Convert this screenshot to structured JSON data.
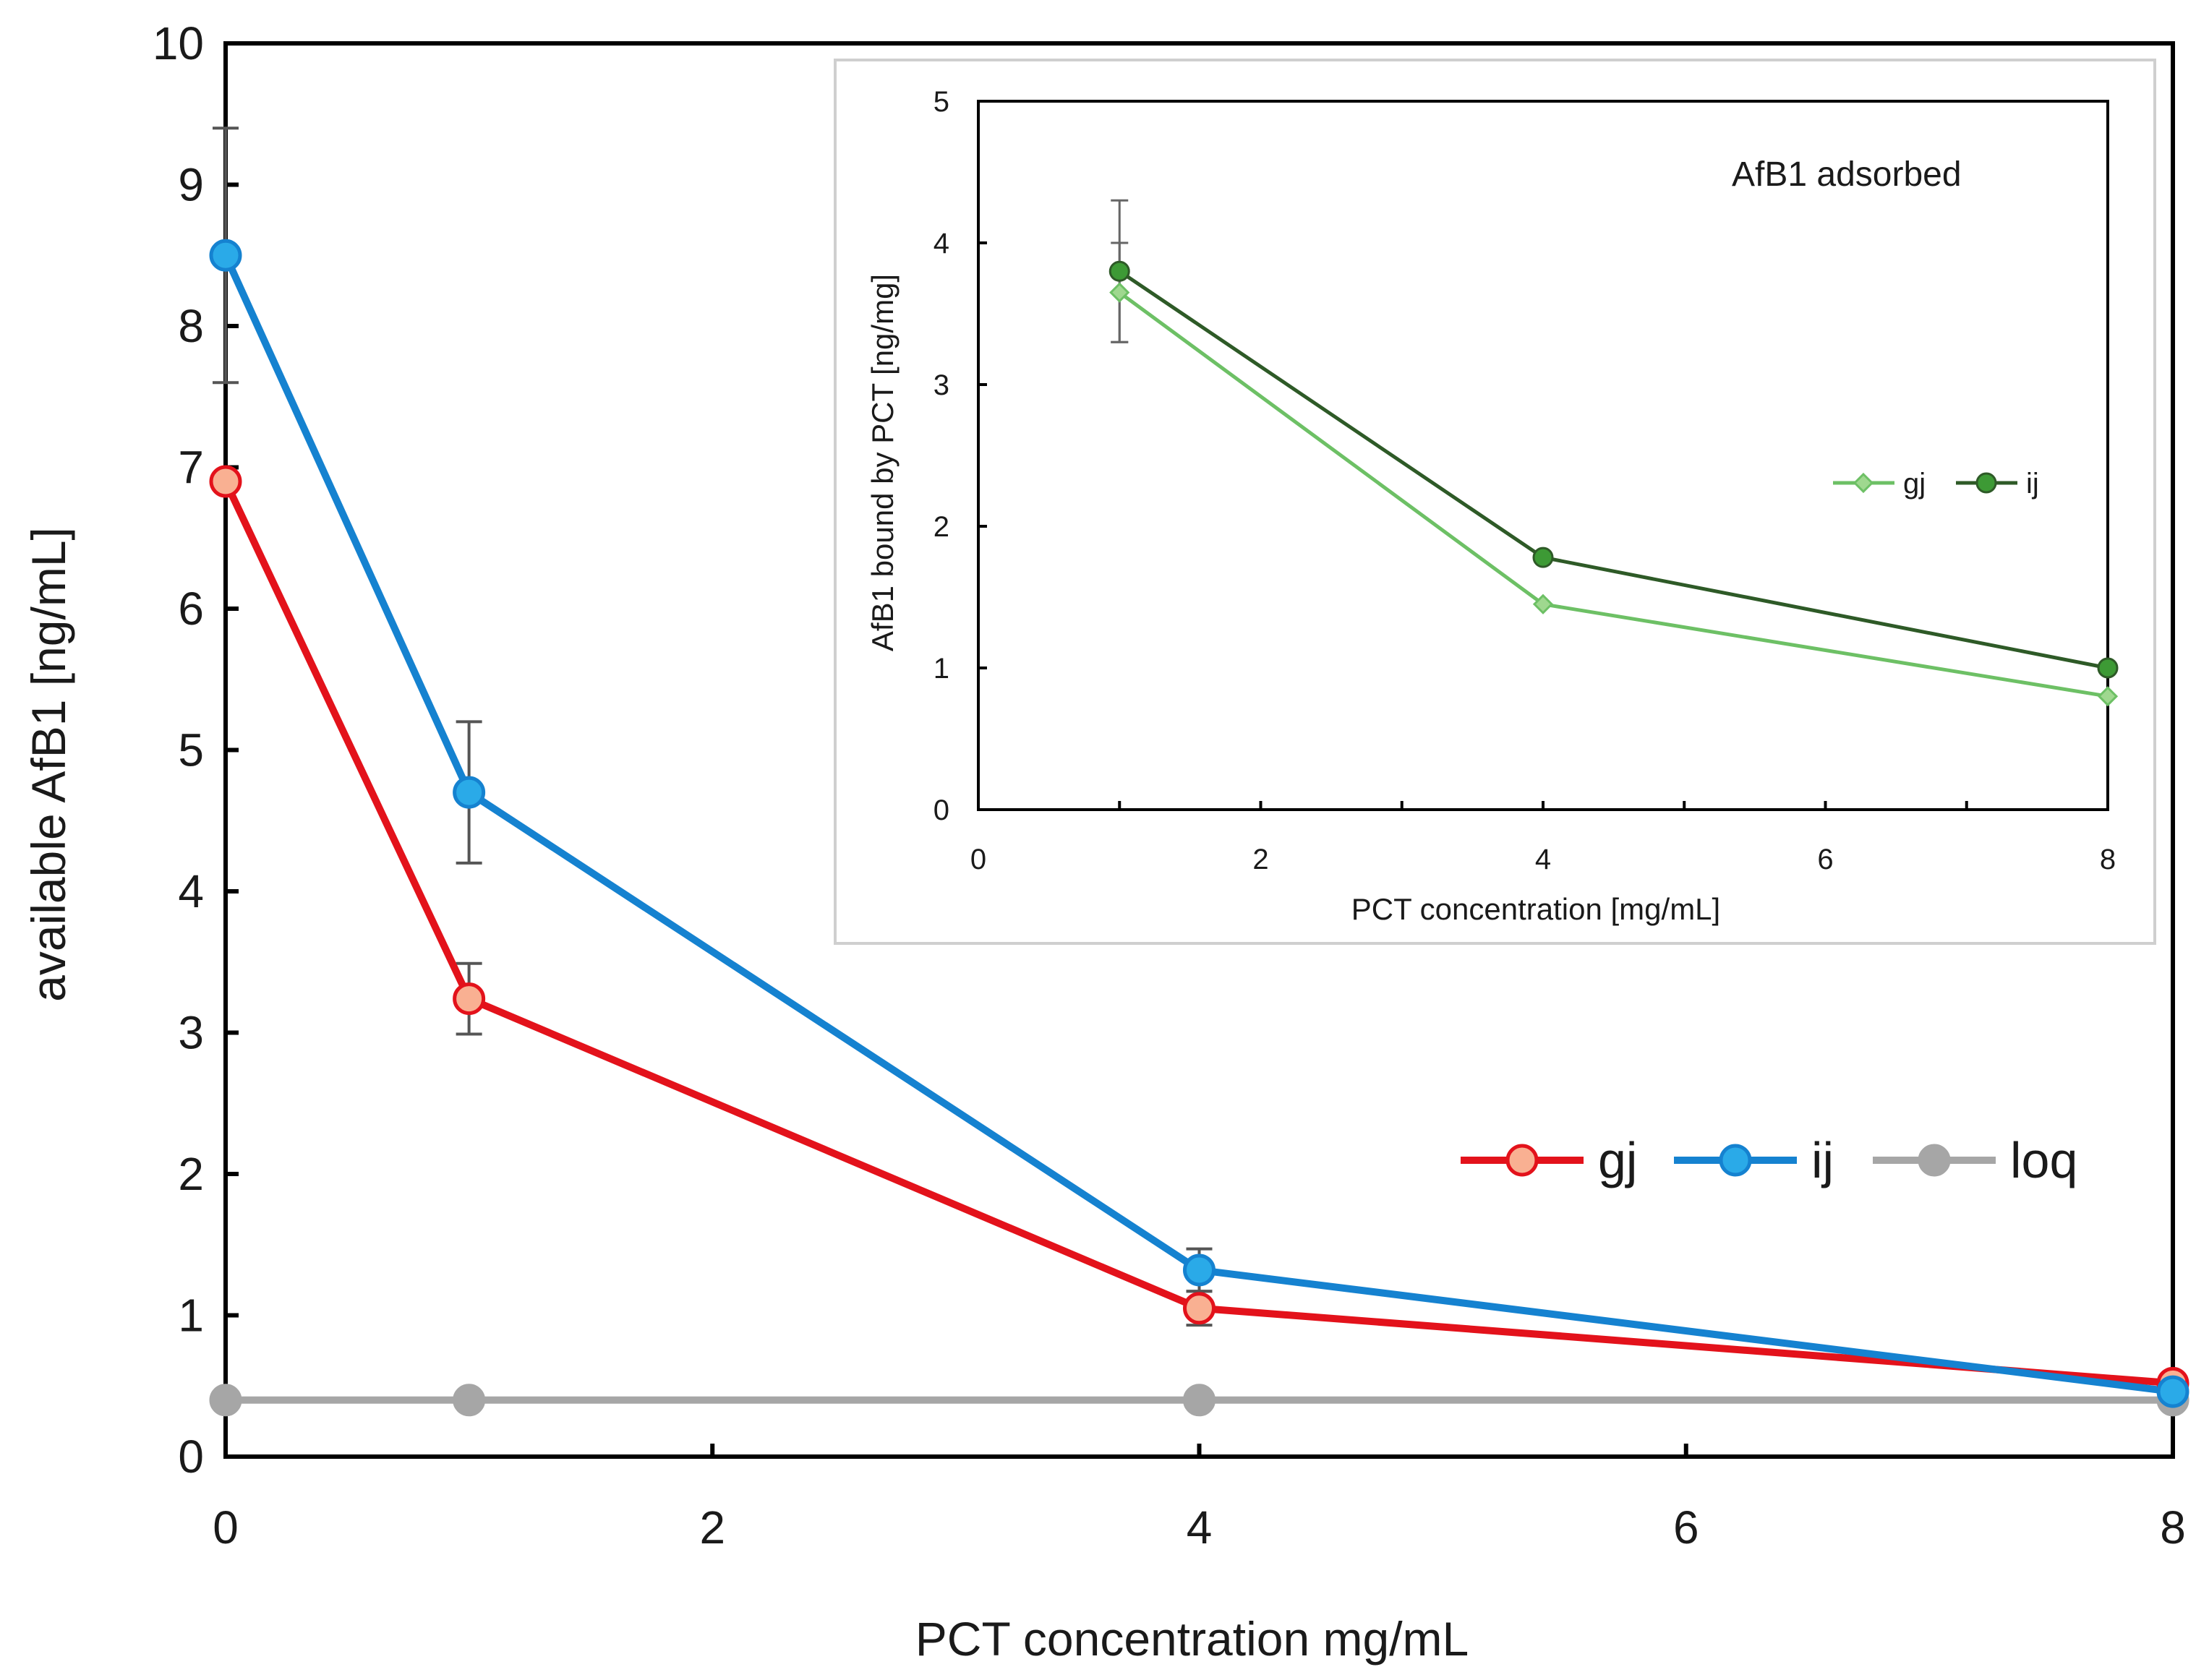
{
  "chart_data": [
    {
      "name": "main",
      "type": "line",
      "xlabel": "PCT concentration mg/mL",
      "ylabel": "available AfB1 [ng/mL]",
      "xlim": [
        0,
        8
      ],
      "ylim": [
        0,
        10
      ],
      "x_ticks": [
        "0",
        "2",
        "4",
        "6",
        "8"
      ],
      "y_ticks": [
        "0",
        "1",
        "2",
        "3",
        "4",
        "5",
        "6",
        "7",
        "8",
        "9",
        "10"
      ],
      "legend_position": "right-middle",
      "series": [
        {
          "name": "gj",
          "color": "#e3121b",
          "marker_fill": "#f9b092",
          "x": [
            0,
            1,
            4,
            8
          ],
          "y": [
            6.9,
            3.24,
            1.05,
            0.52
          ],
          "err": [
            0,
            0.25,
            0.12,
            0
          ]
        },
        {
          "name": "ij",
          "color": "#1582d0",
          "marker_fill": "#2aaae8",
          "x": [
            0,
            1,
            4,
            8
          ],
          "y": [
            8.5,
            4.7,
            1.32,
            0.46
          ],
          "err": [
            0.9,
            0.5,
            0.15,
            0
          ]
        },
        {
          "name": "loq",
          "color": "#a6a6a6",
          "marker_fill": "#a6a6a6",
          "x": [
            0,
            1,
            4,
            8
          ],
          "y": [
            0.4,
            0.4,
            0.4,
            0.4
          ],
          "err": [
            0,
            0,
            0,
            0
          ]
        }
      ]
    },
    {
      "name": "inset",
      "type": "line",
      "annotation": "AfB1 adsorbed",
      "xlabel": "PCT concentration [mg/mL]",
      "ylabel": "AfB1 bound by PCT [ng/mg]",
      "xlim": [
        0,
        8
      ],
      "ylim": [
        0,
        5
      ],
      "x_ticks": [
        "0",
        "2",
        "4",
        "6",
        "8"
      ],
      "y_ticks": [
        "0",
        "1",
        "2",
        "3",
        "4",
        "5"
      ],
      "legend_position": "right-middle",
      "series": [
        {
          "name": "gj",
          "color": "#6dc065",
          "marker": "diamond",
          "x": [
            1,
            4,
            8
          ],
          "y": [
            3.65,
            1.45,
            0.8
          ],
          "err": [
            0.35,
            0,
            0
          ]
        },
        {
          "name": "ij",
          "color": "#2e5a27",
          "marker_fill": "#3d9a35",
          "marker": "circle",
          "x": [
            1,
            4,
            8
          ],
          "y": [
            3.8,
            1.78,
            1.0
          ],
          "err": [
            0.5,
            0,
            0
          ]
        }
      ]
    }
  ]
}
